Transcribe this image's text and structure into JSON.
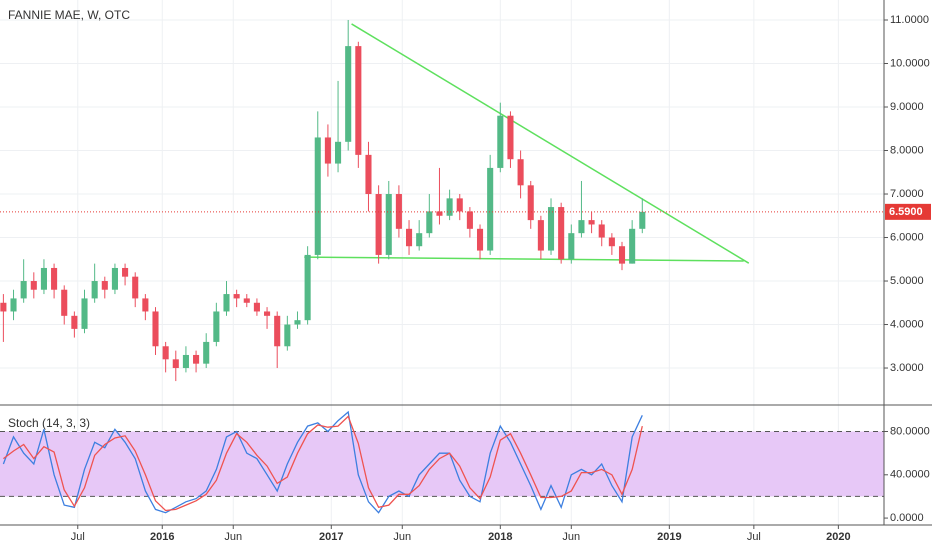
{
  "chart_data": [
    {
      "type": "candlestick",
      "title": "FANNIE MAE, W, OTC",
      "up_color": "#53b987",
      "down_color": "#eb4d5c",
      "x": [
        2015.06,
        2015.12,
        2015.18,
        2015.24,
        2015.3,
        2015.36,
        2015.42,
        2015.48,
        2015.54,
        2015.6,
        2015.66,
        2015.72,
        2015.78,
        2015.84,
        2015.9,
        2015.96,
        2016.02,
        2016.08,
        2016.14,
        2016.2,
        2016.26,
        2016.32,
        2016.38,
        2016.44,
        2016.5,
        2016.56,
        2016.62,
        2016.68,
        2016.74,
        2016.8,
        2016.86,
        2016.92,
        2016.98,
        2017.04,
        2017.1,
        2017.16,
        2017.22,
        2017.28,
        2017.34,
        2017.4,
        2017.46,
        2017.52,
        2017.58,
        2017.64,
        2017.7,
        2017.76,
        2017.82,
        2017.88,
        2017.94,
        2018.0,
        2018.06,
        2018.12,
        2018.18,
        2018.24,
        2018.3,
        2018.36,
        2018.42,
        2018.48,
        2018.54,
        2018.6,
        2018.66,
        2018.72,
        2018.78,
        2018.84
      ],
      "open": [
        4.5,
        4.3,
        4.6,
        5.0,
        4.8,
        5.3,
        4.8,
        4.2,
        3.9,
        4.6,
        5.0,
        4.8,
        5.3,
        5.1,
        4.6,
        4.3,
        3.5,
        3.2,
        3.0,
        3.3,
        3.1,
        3.6,
        4.3,
        4.7,
        4.6,
        4.5,
        4.3,
        4.2,
        3.5,
        4.0,
        4.1,
        5.6,
        8.3,
        7.7,
        8.2,
        10.4,
        7.9,
        7.0,
        5.6,
        7.0,
        6.2,
        5.8,
        6.1,
        6.6,
        6.5,
        6.9,
        6.6,
        6.2,
        5.7,
        7.6,
        8.8,
        7.8,
        7.2,
        6.4,
        5.7,
        6.7,
        5.5,
        6.1,
        6.4,
        6.3,
        6.0,
        5.8,
        5.4,
        6.2
      ],
      "high": [
        4.7,
        4.8,
        5.5,
        5.2,
        5.5,
        5.4,
        4.9,
        4.3,
        4.8,
        5.4,
        5.1,
        5.4,
        5.4,
        5.2,
        4.7,
        4.4,
        3.6,
        3.4,
        3.5,
        3.4,
        3.8,
        4.5,
        5.0,
        4.8,
        4.7,
        4.6,
        4.4,
        4.3,
        4.2,
        4.3,
        5.8,
        8.9,
        8.6,
        9.6,
        11.0,
        10.5,
        8.2,
        7.2,
        7.3,
        7.2,
        6.4,
        6.4,
        7.0,
        7.6,
        7.1,
        7.0,
        6.7,
        6.3,
        7.9,
        9.1,
        8.9,
        8.0,
        7.3,
        6.5,
        6.9,
        6.8,
        6.3,
        7.3,
        6.6,
        6.4,
        6.1,
        5.9,
        6.4,
        6.9
      ],
      "low": [
        3.6,
        4.1,
        4.5,
        4.6,
        4.7,
        4.6,
        4.0,
        3.7,
        3.8,
        4.5,
        4.6,
        4.7,
        4.9,
        4.4,
        4.1,
        3.3,
        2.9,
        2.7,
        2.9,
        2.9,
        3.0,
        3.5,
        4.2,
        4.4,
        4.4,
        4.2,
        3.9,
        3.0,
        3.4,
        3.9,
        4.0,
        5.5,
        7.4,
        7.5,
        8.0,
        7.6,
        6.6,
        5.4,
        5.5,
        6.0,
        5.6,
        5.7,
        6.0,
        6.3,
        6.4,
        6.4,
        6.0,
        5.5,
        5.6,
        7.5,
        7.6,
        6.9,
        6.2,
        5.5,
        5.6,
        5.4,
        5.4,
        6.0,
        6.1,
        5.8,
        5.6,
        5.25,
        5.4,
        6.1
      ],
      "close": [
        4.3,
        4.6,
        5.0,
        4.8,
        5.3,
        4.8,
        4.2,
        3.9,
        4.6,
        5.0,
        4.8,
        5.3,
        5.1,
        4.6,
        4.3,
        3.5,
        3.2,
        3.0,
        3.3,
        3.1,
        3.6,
        4.3,
        4.7,
        4.6,
        4.5,
        4.3,
        4.2,
        3.5,
        4.0,
        4.1,
        5.6,
        8.3,
        7.7,
        8.2,
        10.4,
        7.9,
        7.0,
        5.6,
        7.0,
        6.2,
        5.8,
        6.1,
        6.6,
        6.5,
        6.9,
        6.6,
        6.2,
        5.7,
        7.6,
        8.8,
        7.8,
        7.2,
        6.4,
        5.7,
        6.7,
        5.5,
        6.1,
        6.4,
        6.3,
        6.0,
        5.8,
        5.4,
        6.2,
        6.59
      ],
      "xlim": [
        2015.04,
        2020.27
      ],
      "xticks": [
        {
          "value": 2015.5,
          "label": "Jul"
        },
        2016,
        {
          "value": 2016.42,
          "label": "Jun"
        },
        2017,
        {
          "value": 2017.42,
          "label": "Jun"
        },
        2018,
        {
          "value": 2018.42,
          "label": "Jun"
        },
        2019,
        {
          "value": 2019.5,
          "label": "Jul"
        },
        2020
      ],
      "ylim": [
        2.15,
        11.46
      ],
      "yticks": [
        {
          "value": 3,
          "label": "3.0000"
        },
        {
          "value": 4,
          "label": "4.0000"
        },
        {
          "value": 5,
          "label": "5.0000"
        },
        {
          "value": 6,
          "label": "6.0000"
        },
        {
          "value": 7,
          "label": "7.0000"
        },
        {
          "value": 8,
          "label": "8.0000"
        },
        {
          "value": 9,
          "label": "9.0000"
        },
        {
          "value": 10,
          "label": "10.0000"
        },
        {
          "value": 11,
          "label": "11.0000"
        }
      ],
      "grid": true,
      "price_line": {
        "value": 6.59,
        "label": "6.5900",
        "color": "#e53935"
      },
      "trendlines": [
        {
          "x": [
            2017.12,
            2019.47
          ],
          "y": [
            10.91,
            5.41
          ],
          "color": "#5ee05e"
        },
        {
          "x": [
            2016.84,
            2019.44
          ],
          "y": [
            5.55,
            5.46
          ],
          "color": "#5ee05e"
        }
      ]
    },
    {
      "type": "line",
      "title": "Stoch (14, 3, 3)",
      "series": [
        {
          "color": "#3d7fe0",
          "values": [
            50,
            75,
            60,
            50,
            82,
            40,
            12,
            10,
            45,
            70,
            65,
            82,
            70,
            55,
            25,
            8,
            5,
            10,
            15,
            18,
            25,
            45,
            75,
            80,
            60,
            55,
            40,
            25,
            50,
            70,
            85,
            88,
            80,
            90,
            98,
            40,
            15,
            5,
            20,
            25,
            20,
            40,
            50,
            60,
            60,
            35,
            20,
            15,
            60,
            85,
            70,
            50,
            30,
            8,
            30,
            10,
            40,
            45,
            40,
            50,
            30,
            15,
            75,
            95
          ]
        },
        {
          "color": "#ef5350",
          "values": [
            55,
            62,
            68,
            55,
            66,
            61,
            26,
            11,
            28,
            58,
            68,
            74,
            76,
            62,
            40,
            16,
            7,
            8,
            12,
            16,
            22,
            35,
            60,
            78,
            70,
            58,
            48,
            32,
            38,
            60,
            78,
            86,
            84,
            85,
            94,
            69,
            28,
            10,
            12,
            22,
            22,
            30,
            45,
            55,
            60,
            48,
            28,
            18,
            38,
            72,
            78,
            60,
            40,
            19,
            19,
            20,
            25,
            42,
            42,
            45,
            40,
            22,
            45,
            85
          ]
        }
      ],
      "ylim": [
        -6.4,
        104.5
      ],
      "yticks": [
        {
          "value": 0,
          "label": "0.0000"
        },
        {
          "value": 40,
          "label": "40.0000"
        },
        {
          "value": 80,
          "label": "80.0000"
        }
      ],
      "bands": [
        20,
        80
      ],
      "band_color": "#e7c8f7"
    }
  ]
}
